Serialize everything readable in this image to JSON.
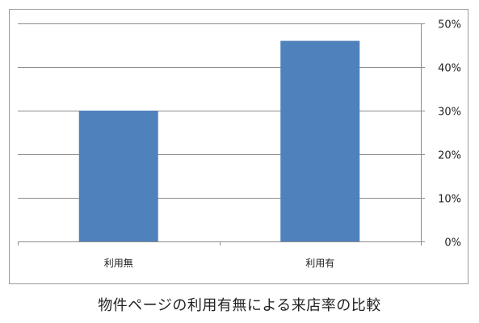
{
  "caption": "物件ページの利用有無による来店率の比較",
  "chart_data": {
    "type": "bar",
    "title": "",
    "xlabel": "",
    "ylabel": "",
    "categories": [
      "利用無",
      "利用有"
    ],
    "values": [
      30,
      46
    ],
    "unit": "%",
    "ylim": [
      0,
      50
    ],
    "yticks": [
      0,
      10,
      20,
      30,
      40,
      50
    ],
    "ytick_labels": [
      "0%",
      "10%",
      "20%",
      "30%",
      "40%",
      "50%"
    ],
    "y_axis_side": "right",
    "grid": true,
    "legend": "none",
    "bar_color": "#4f81bd",
    "grid_color": "#8c8c8c"
  }
}
